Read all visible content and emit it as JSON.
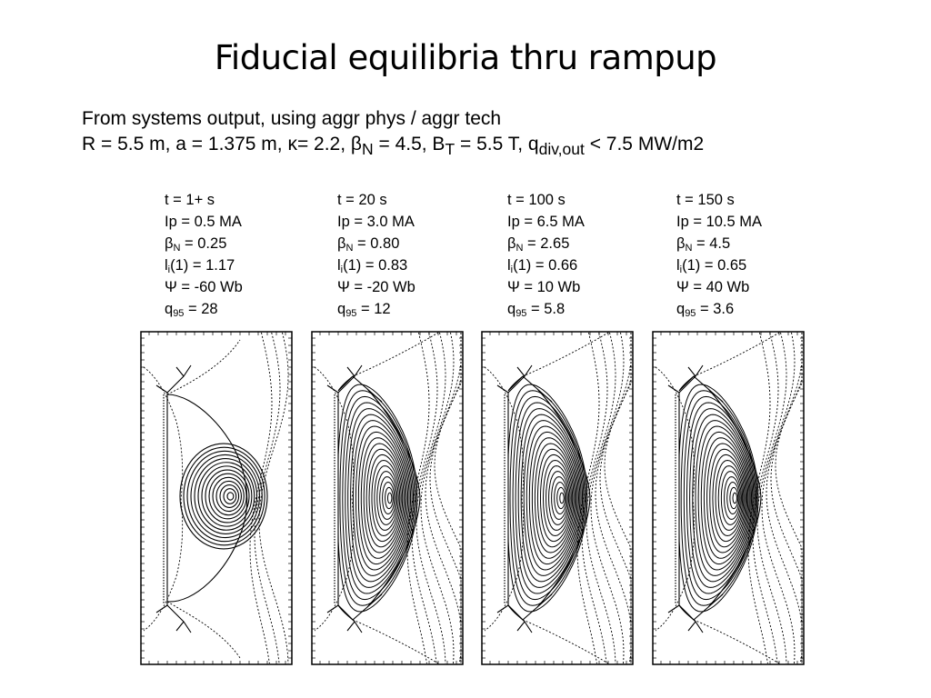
{
  "title": "Fiducial equilibria thru rampup",
  "subtitle": {
    "line1": "From systems output, using aggr phys / aggr tech",
    "line2_a": "R = 5.5 m, a = 1.375 m, κ= 2.2, β",
    "line2_a_sub": "N",
    "line2_b": " = 4.5, B",
    "line2_b_sub": "T",
    "line2_c": " = 5.5 T, q",
    "line2_c_sub": "div,out",
    "line2_d": " < 7.5 MW/m2"
  },
  "labels": {
    "beta": "β",
    "beta_sub": "N",
    "li": "l",
    "li_sub": "i",
    "q": "q",
    "q_sub": "95"
  },
  "cases": [
    {
      "t": "t = 1+ s",
      "ip": "Ip = 0.5 MA",
      "beta_val": " = 0.25",
      "li_val": "(1) = 1.17",
      "psi": "Ψ = -60 Wb",
      "q_val": " = 28",
      "plasma": {
        "r": 0.45,
        "kappa": 1.05,
        "delta": 0.0,
        "contours": 14,
        "axis_shift": 0.0
      }
    },
    {
      "t": "t = 20 s",
      "ip": "Ip = 3.0 MA",
      "beta_val": " = 0.80",
      "li_val": "(1) = 0.83",
      "psi": "Ψ = -20 Wb",
      "q_val": " = 12",
      "plasma": {
        "r": 1.0,
        "kappa": 1.0,
        "delta": 0.55,
        "contours": 20,
        "axis_shift": 0.3
      }
    },
    {
      "t": "t = 100 s",
      "ip": "Ip = 6.5 MA",
      "beta_val": " = 2.65",
      "li_val": "(1) = 0.66",
      "psi": "Ψ = 10 Wb",
      "q_val": " = 5.8",
      "plasma": {
        "r": 1.0,
        "kappa": 1.0,
        "delta": 0.55,
        "contours": 20,
        "axis_shift": 0.35
      }
    },
    {
      "t": "t = 150 s",
      "ip": "Ip = 10.5 MA",
      "beta_val": " = 4.5",
      "li_val": "(1) = 0.65",
      "psi": "Ψ = 40 Wb",
      "q_val": " = 3.6",
      "plasma": {
        "r": 1.0,
        "kappa": 1.0,
        "delta": 0.55,
        "contours": 20,
        "axis_shift": 0.4
      }
    }
  ]
}
